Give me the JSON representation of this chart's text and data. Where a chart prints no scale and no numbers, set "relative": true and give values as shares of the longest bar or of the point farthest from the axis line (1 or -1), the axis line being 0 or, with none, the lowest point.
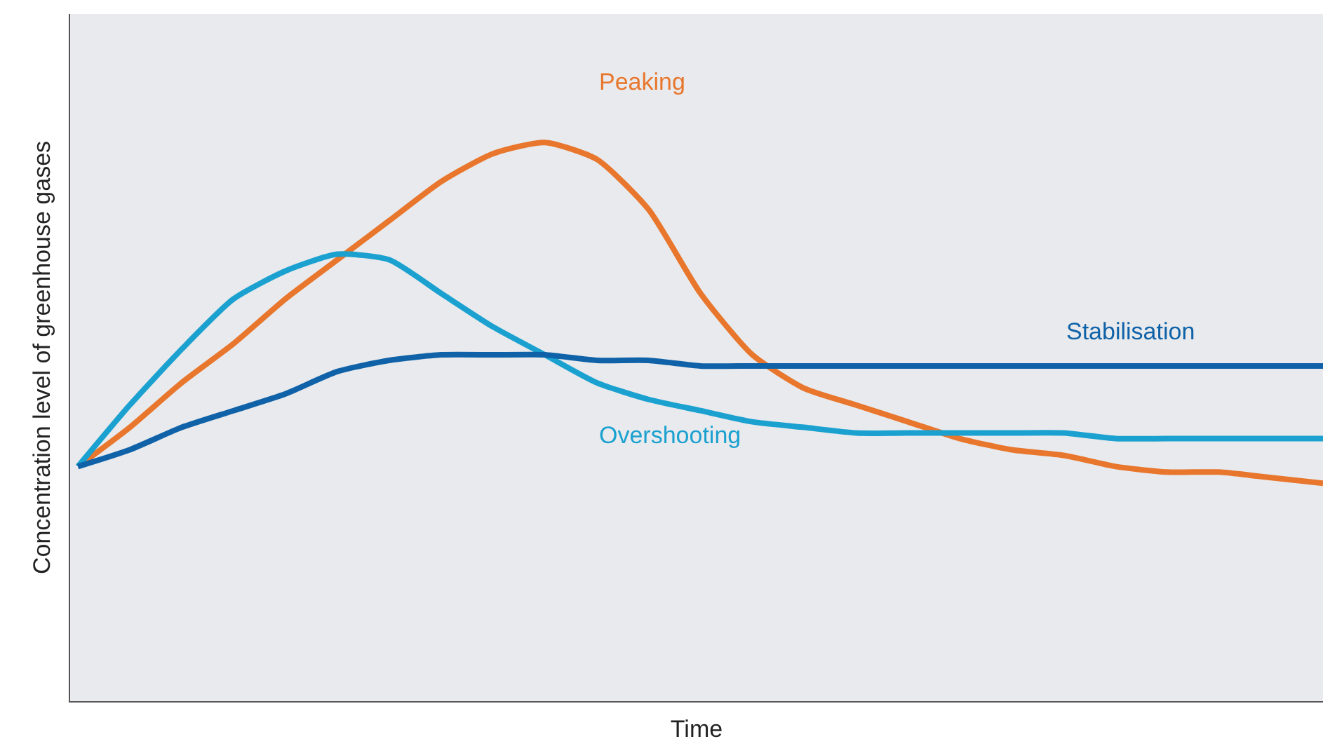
{
  "chart_data": {
    "type": "line",
    "relative": true,
    "xlabel": "Time",
    "ylabel": "Concentration level of greenhouse gases",
    "categories": [
      null,
      null,
      null,
      null,
      null,
      null,
      null,
      null,
      null,
      null,
      null,
      null,
      null,
      null,
      null,
      null,
      null,
      null,
      null,
      null,
      null,
      null,
      null,
      null,
      null
    ],
    "series": [
      {
        "name": "Peaking",
        "color": "#e8762c",
        "values": [
          0.42,
          0.49,
          0.57,
          0.64,
          0.72,
          0.79,
          0.86,
          0.93,
          0.98,
          1,
          0.97,
          0.88,
          0.73,
          0.62,
          0.56,
          0.53,
          0.5,
          0.47,
          0.45,
          0.44,
          0.42,
          0.41,
          0.41,
          0.4,
          0.39
        ]
      },
      {
        "name": "Overshooting",
        "color": "#1ba1d0",
        "values": [
          0.42,
          0.53,
          0.63,
          0.72,
          0.77,
          0.8,
          0.79,
          0.73,
          0.67,
          0.62,
          0.57,
          0.54,
          0.52,
          0.5,
          0.49,
          0.48,
          0.48,
          0.48,
          0.48,
          0.48,
          0.47,
          0.47,
          0.47,
          0.47,
          0.47
        ]
      },
      {
        "name": "Stabilisation",
        "color": "#0f62a8",
        "values": [
          0.42,
          0.45,
          0.49,
          0.52,
          0.55,
          0.59,
          0.61,
          0.62,
          0.62,
          0.62,
          0.61,
          0.61,
          0.6,
          0.6,
          0.6,
          0.6,
          0.6,
          0.6,
          0.6,
          0.6,
          0.6,
          0.6,
          0.6,
          0.6,
          0.6
        ]
      }
    ],
    "grid": false,
    "legend": false,
    "marker": "none",
    "line_style": "solid"
  }
}
